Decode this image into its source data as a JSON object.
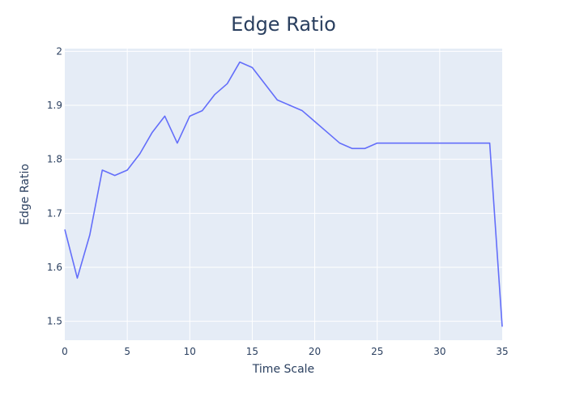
{
  "chart_data": {
    "type": "line",
    "title": "Edge Ratio",
    "xlabel": "Time Scale",
    "ylabel": "Edge Ratio",
    "xlim": [
      0,
      35
    ],
    "ylim": [
      1.465,
      2.005
    ],
    "x_ticks": [
      0,
      5,
      10,
      15,
      20,
      25,
      30,
      35
    ],
    "y_ticks": [
      1.5,
      1.6,
      1.7,
      1.8,
      1.9,
      2
    ],
    "x_tick_labels": [
      "0",
      "5",
      "10",
      "15",
      "20",
      "25",
      "30",
      "35"
    ],
    "y_tick_labels": [
      "1.5",
      "1.6",
      "1.7",
      "1.8",
      "1.9",
      "2"
    ],
    "grid": true,
    "line_color": "#636efa",
    "plot_background": "#e5ecf6",
    "series": [
      {
        "x": [
          0,
          1,
          2,
          3,
          4,
          5,
          6,
          7,
          8,
          9,
          10,
          11,
          12,
          13,
          14,
          15,
          16,
          17,
          18,
          19,
          20,
          21,
          22,
          23,
          24,
          25,
          26,
          27,
          28,
          29,
          30,
          31,
          32,
          33,
          34,
          35
        ],
        "values": [
          1.67,
          1.58,
          1.66,
          1.78,
          1.77,
          1.78,
          1.81,
          1.85,
          1.88,
          1.83,
          1.88,
          1.89,
          1.92,
          1.94,
          1.98,
          1.97,
          1.94,
          1.91,
          1.9,
          1.89,
          1.87,
          1.85,
          1.83,
          1.82,
          1.82,
          1.83,
          1.83,
          1.83,
          1.83,
          1.83,
          1.83,
          1.83,
          1.83,
          1.83,
          1.83,
          1.49
        ]
      }
    ]
  }
}
